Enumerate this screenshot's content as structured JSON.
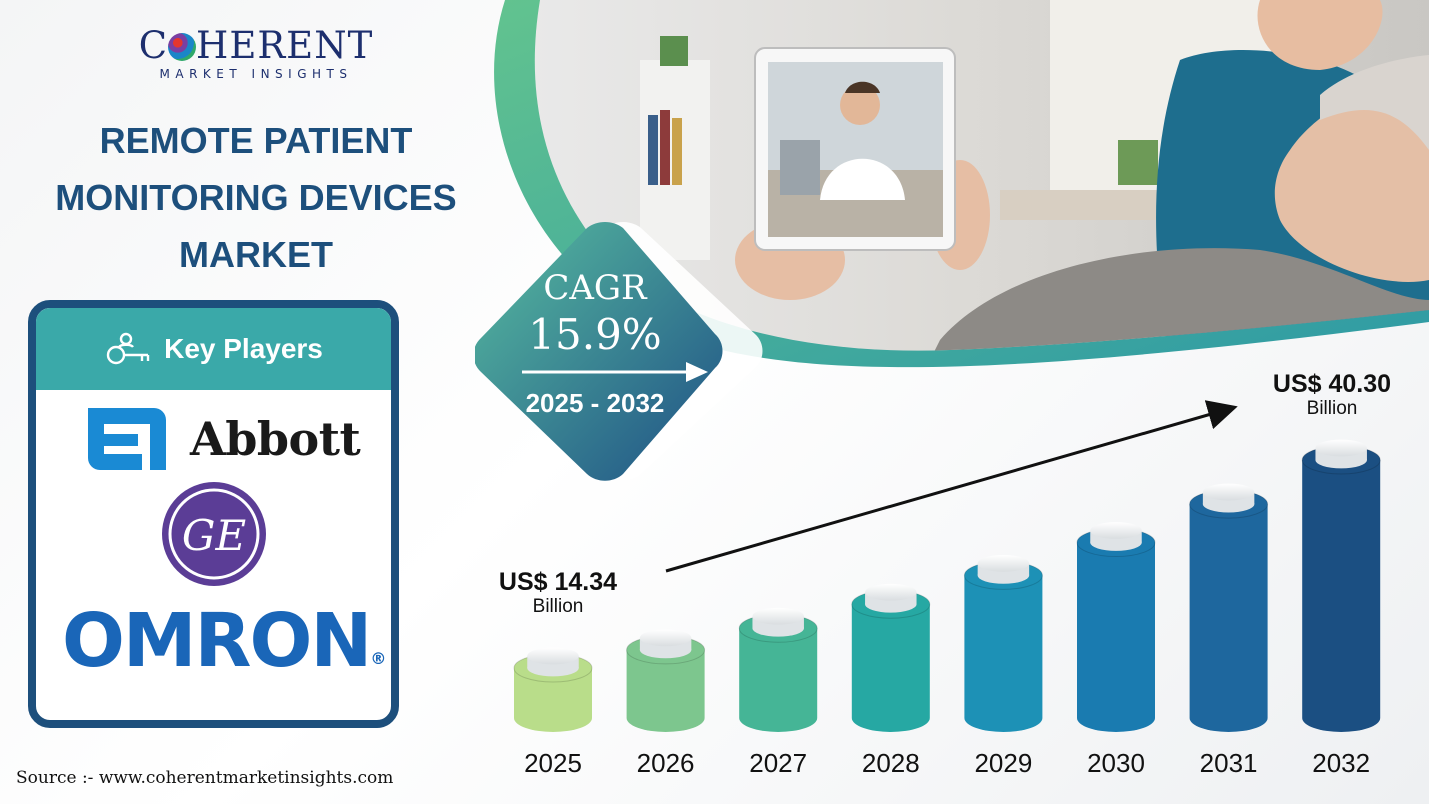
{
  "brand": {
    "name_prefix": "C",
    "name_suffix": "HERENT",
    "tagline": "MARKET INSIGHTS"
  },
  "title": "REMOTE PATIENT\nMONITORING DEVICES\nMARKET",
  "key_players": {
    "heading": "Key Players",
    "companies": [
      "Abbott",
      "GE",
      "OMRON"
    ],
    "registered_mark": "®"
  },
  "cagr": {
    "label": "CAGR",
    "value": "15.9%",
    "period": "2025 - 2032"
  },
  "chart_data": {
    "type": "bar",
    "categories": [
      "2025",
      "2026",
      "2027",
      "2028",
      "2029",
      "2030",
      "2031",
      "2032"
    ],
    "values": [
      14.34,
      16.6,
      19.3,
      22.3,
      25.9,
      30.0,
      34.8,
      40.3
    ],
    "annotations": {
      "start": {
        "amount": "US$ 14.34",
        "unit": "Billion"
      },
      "end": {
        "amount": "US$ 40.30",
        "unit": "Billion"
      }
    },
    "colors": [
      "#b9dd8a",
      "#7dc68e",
      "#45b596",
      "#26a8a3",
      "#1d91b6",
      "#1a7bb0",
      "#1e679e",
      "#1b4f82"
    ],
    "title": "",
    "xlabel": "",
    "ylabel": ""
  },
  "source": "Source :- www.coherentmarketinsights.com"
}
